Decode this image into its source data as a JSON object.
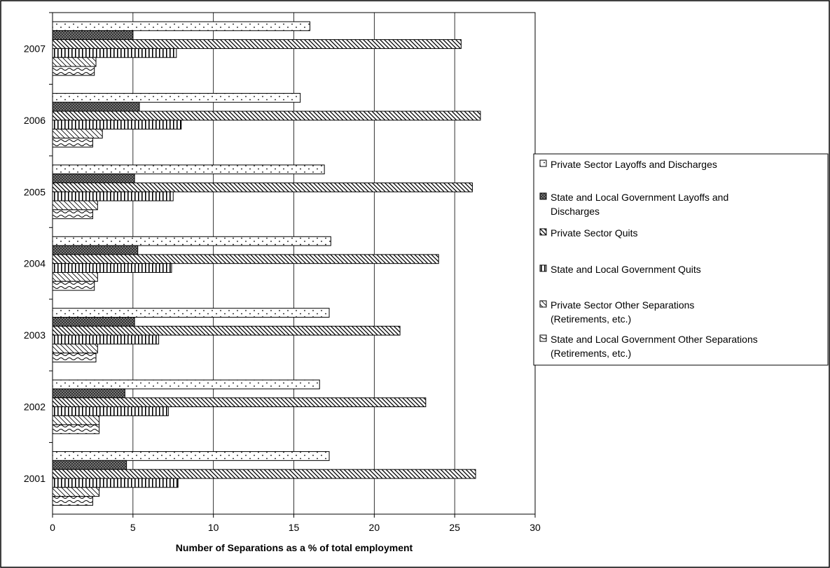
{
  "chart_data": {
    "type": "bar",
    "orientation": "horizontal",
    "title": "",
    "xlabel": "Number of Separations as a % of total employment",
    "ylabel": "",
    "xlim": [
      0,
      30
    ],
    "x_ticks": [
      0,
      5,
      10,
      15,
      20,
      25,
      30
    ],
    "grid": true,
    "legend_position": "right",
    "categories": [
      "2001",
      "2002",
      "2003",
      "2004",
      "2005",
      "2006",
      "2007"
    ],
    "series": [
      {
        "name": "Private Sector Layoffs and Discharges",
        "pattern": "dots",
        "values": [
          17.2,
          16.6,
          17.2,
          17.3,
          16.9,
          15.4,
          16.0
        ]
      },
      {
        "name": "State and Local Government Layoffs and Discharges",
        "pattern": "crosshatch",
        "values": [
          4.6,
          4.5,
          5.1,
          5.3,
          5.1,
          5.4,
          5.0
        ]
      },
      {
        "name": "Private Sector Quits",
        "pattern": "diagonal",
        "values": [
          26.3,
          23.2,
          21.6,
          24.0,
          26.1,
          26.6,
          25.4
        ]
      },
      {
        "name": "State and Local Government Quits",
        "pattern": "vertical",
        "values": [
          7.8,
          7.2,
          6.6,
          7.4,
          7.5,
          8.0,
          7.7
        ]
      },
      {
        "name": "Private Sector Other Separations (Retirements, etc.)",
        "pattern": "diagonal-light",
        "values": [
          2.9,
          2.9,
          2.8,
          2.8,
          2.8,
          3.1,
          2.7
        ]
      },
      {
        "name": "State and Local Government Other Separations (Retirements, etc.)",
        "pattern": "wave",
        "values": [
          2.5,
          2.9,
          2.7,
          2.6,
          2.5,
          2.5,
          2.6
        ]
      }
    ]
  },
  "legend": {
    "entries": [
      {
        "lines": [
          "Private Sector Layoffs and Discharges"
        ]
      },
      {
        "lines": [
          "State and Local Government Layoffs and",
          "Discharges"
        ]
      },
      {
        "lines": [
          "Private Sector Quits"
        ]
      },
      {
        "lines": [
          "State and Local Government Quits"
        ]
      },
      {
        "lines": [
          "Private Sector Other Separations",
          "(Retirements, etc.)"
        ]
      },
      {
        "lines": [
          "State and Local Government Other Separations",
          "(Retirements, etc.)"
        ]
      }
    ]
  }
}
